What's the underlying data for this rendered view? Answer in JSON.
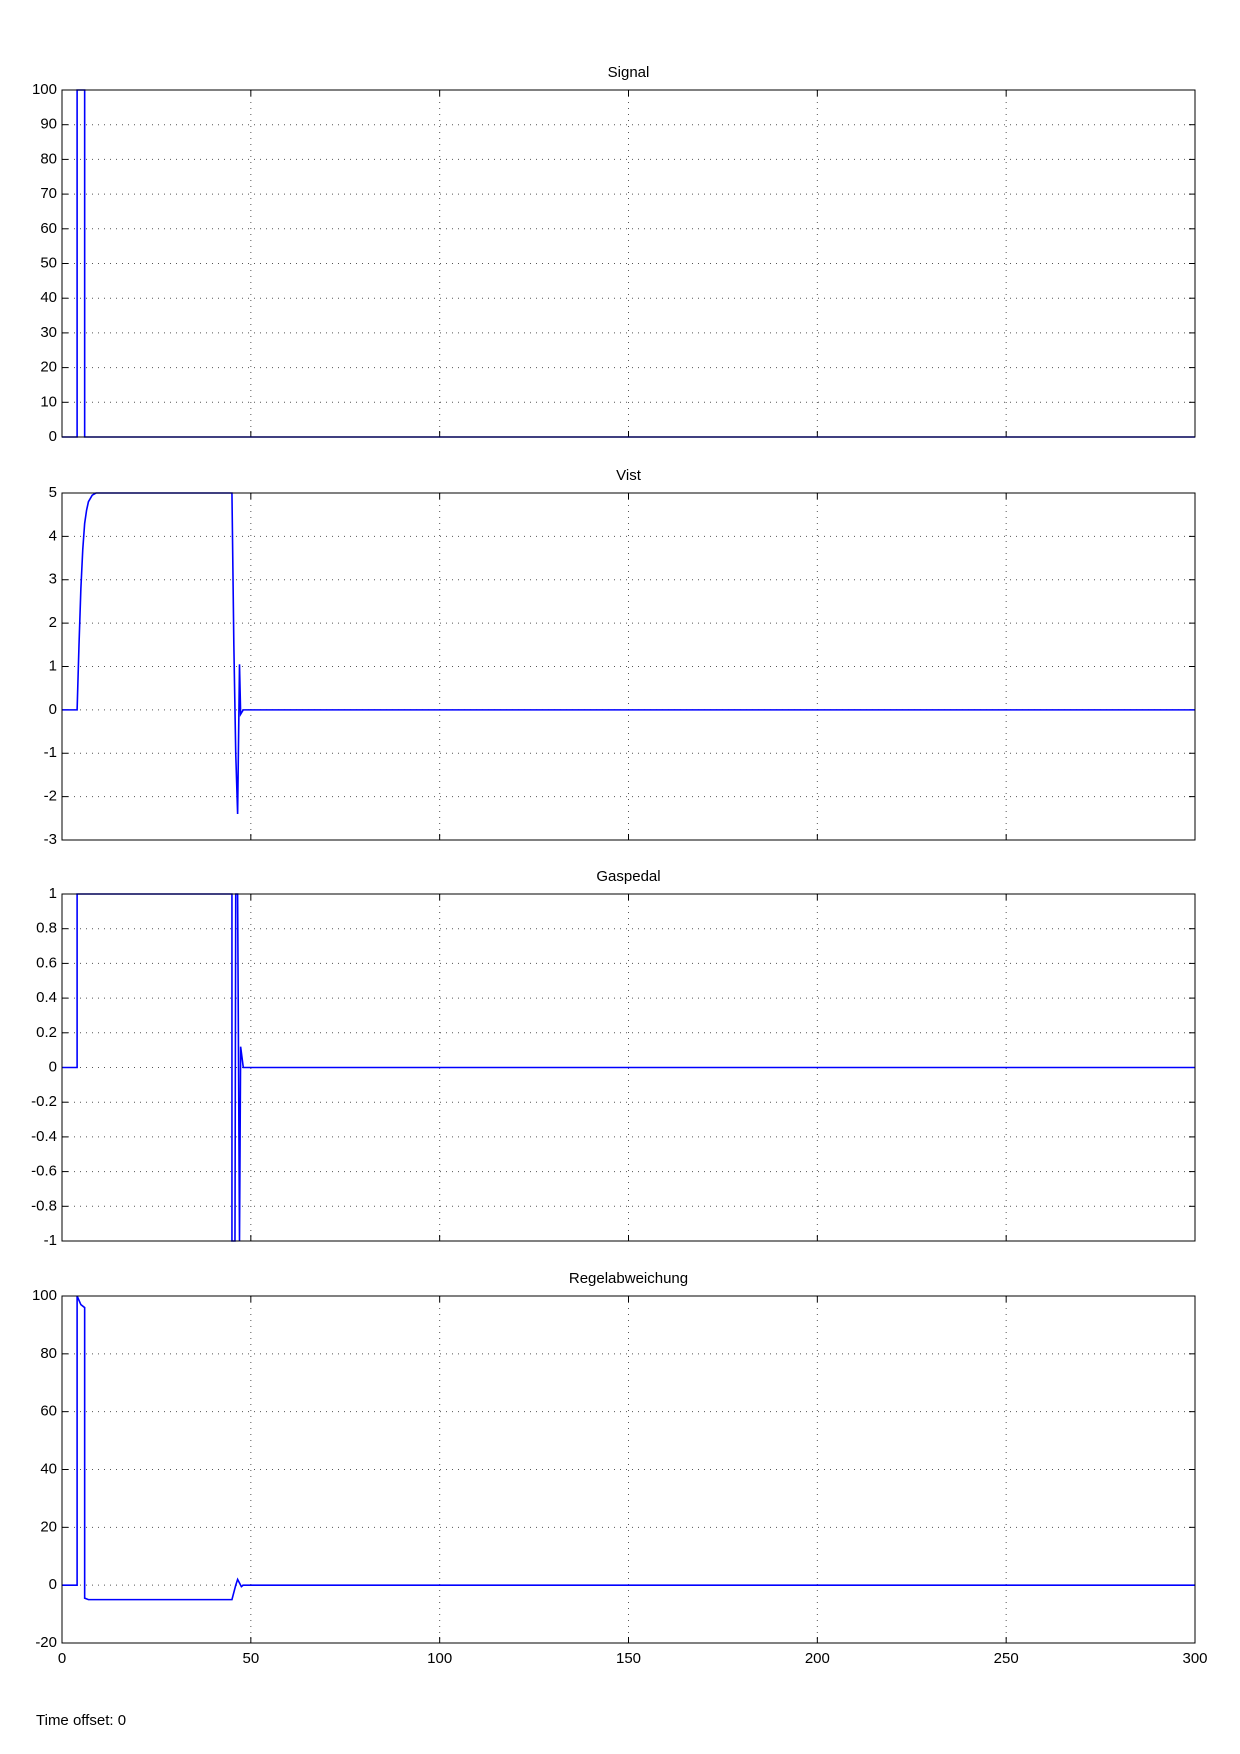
{
  "chart_data": [
    {
      "type": "line",
      "title": "Signal",
      "color": "#0000ff",
      "grid": true,
      "x": [
        0,
        4,
        4,
        6,
        6,
        300
      ],
      "values": [
        0,
        0,
        100,
        100,
        0,
        0
      ],
      "xlim": [
        0,
        300
      ],
      "xticks": [
        0,
        50,
        100,
        150,
        200,
        250,
        300
      ],
      "ylim": [
        0,
        100
      ],
      "yticks": [
        0,
        10,
        20,
        30,
        40,
        50,
        60,
        70,
        80,
        90,
        100
      ]
    },
    {
      "type": "line",
      "title": "Vist",
      "color": "#0000ff",
      "grid": true,
      "x": [
        0,
        4,
        4.5,
        5,
        5.5,
        6,
        6.5,
        7,
        8,
        9,
        10,
        45,
        45.5,
        46,
        46.5,
        47,
        47.3,
        48,
        300
      ],
      "values": [
        0,
        0,
        1.5,
        2.8,
        3.7,
        4.3,
        4.6,
        4.8,
        4.95,
        5,
        5,
        5,
        1.5,
        -1,
        -2.4,
        1.05,
        -0.1,
        0,
        0
      ],
      "xlim": [
        0,
        300
      ],
      "xticks": [
        0,
        50,
        100,
        150,
        200,
        250,
        300
      ],
      "ylim": [
        -3,
        5
      ],
      "yticks": [
        -3,
        -2,
        -1,
        0,
        1,
        2,
        3,
        4,
        5
      ]
    },
    {
      "type": "line",
      "title": "Gaspedal",
      "color": "#0000ff",
      "grid": true,
      "x": [
        0,
        4,
        4,
        45,
        45,
        45.8,
        46,
        46.5,
        47,
        47.3,
        48,
        300
      ],
      "values": [
        0,
        0,
        1,
        1,
        -1,
        -1,
        1,
        1,
        -1,
        0.12,
        0,
        0
      ],
      "xlim": [
        0,
        300
      ],
      "xticks": [
        0,
        50,
        100,
        150,
        200,
        250,
        300
      ],
      "ylim": [
        -1,
        1
      ],
      "yticks": [
        -1,
        -0.8,
        -0.6,
        -0.4,
        -0.2,
        0,
        0.2,
        0.4,
        0.6,
        0.8,
        1
      ]
    },
    {
      "type": "line",
      "title": "Regelabweichung",
      "color": "#0000ff",
      "grid": true,
      "x": [
        0,
        4,
        4,
        5,
        6,
        6,
        7,
        45,
        46,
        46.5,
        47.5,
        48,
        300
      ],
      "values": [
        0,
        0,
        100,
        97,
        96,
        -4.5,
        -5,
        -5,
        0,
        2,
        -0.5,
        0,
        0
      ],
      "xlim": [
        0,
        300
      ],
      "xticks": [
        0,
        50,
        100,
        150,
        200,
        250,
        300
      ],
      "ylim": [
        -20,
        100
      ],
      "yticks": [
        -20,
        0,
        20,
        40,
        60,
        80,
        100
      ]
    }
  ],
  "time_offset_label": "Time offset: 0"
}
